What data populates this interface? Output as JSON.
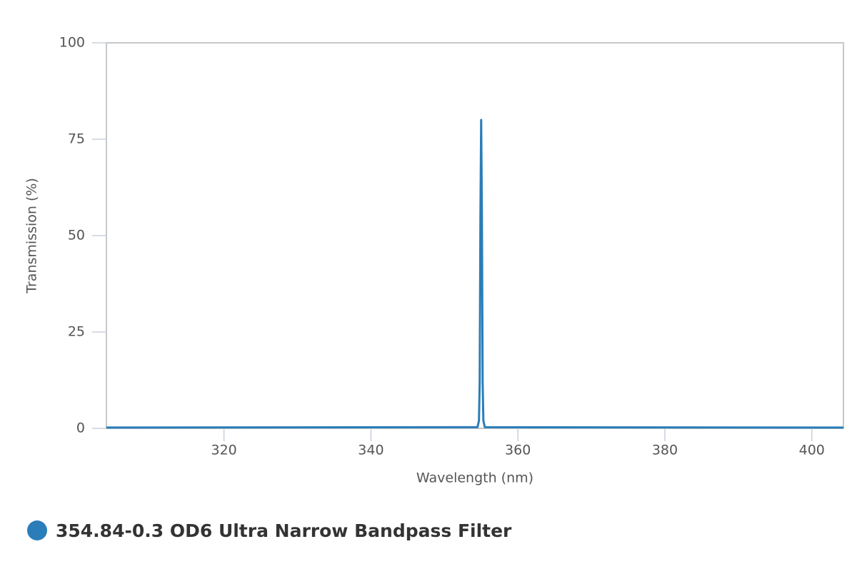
{
  "chart_data": {
    "type": "line",
    "x_label": "Wavelength (nm)",
    "y_label": "Transmission (%)",
    "xlim": [
      304,
      404.3
    ],
    "ylim": [
      0,
      100
    ],
    "xticks": [
      320,
      340,
      360,
      380,
      400
    ],
    "yticks": [
      0,
      25,
      50,
      75,
      100
    ],
    "series": [
      {
        "name": "354.84-0.3 OD6 Ultra Narrow Bandpass Filter",
        "color": "#2a7db8",
        "x": [
          304,
          354.5,
          354.7,
          354.8,
          354.9,
          355.0,
          355.1,
          355.2,
          355.3,
          355.5,
          404.3
        ],
        "values": [
          0.2,
          0.3,
          2,
          12,
          55,
          80,
          55,
          12,
          2,
          0.3,
          0.2
        ]
      }
    ],
    "legend": "bottom-left"
  }
}
